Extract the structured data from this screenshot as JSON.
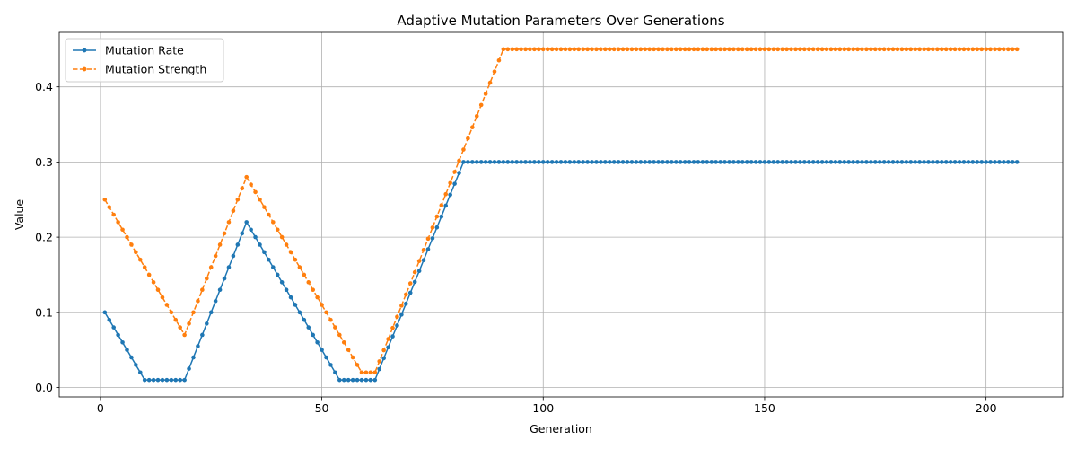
{
  "chart_data": {
    "type": "line",
    "title": "Adaptive Mutation Parameters Over Generations",
    "xlabel": "Generation",
    "ylabel": "Value",
    "xlim": [
      -9.3,
      217.3
    ],
    "ylim": [
      -0.0125,
      0.4725
    ],
    "xticks": [
      0,
      50,
      100,
      150,
      200
    ],
    "yticks": [
      0.0,
      0.1,
      0.2,
      0.3,
      0.4
    ],
    "xtick_labels": [
      "0",
      "50",
      "100",
      "150",
      "200"
    ],
    "ytick_labels": [
      "0.0",
      "0.1",
      "0.2",
      "0.3",
      "0.4"
    ],
    "grid": true,
    "legend_position": "top-left",
    "x_range": [
      1,
      207
    ],
    "series": [
      {
        "name": "Mutation Rate",
        "color": "#1f77b4",
        "style": "solid",
        "marker": "circle",
        "keypoints": [
          [
            1,
            0.1
          ],
          [
            10,
            0.01
          ],
          [
            19,
            0.01
          ],
          [
            33,
            0.22
          ],
          [
            54,
            0.01
          ],
          [
            62,
            0.01
          ],
          [
            82,
            0.3
          ],
          [
            207,
            0.3
          ]
        ]
      },
      {
        "name": "Mutation Strength",
        "color": "#ff7f0e",
        "style": "dashed",
        "marker": "circle",
        "keypoints": [
          [
            1,
            0.25
          ],
          [
            19,
            0.07
          ],
          [
            33,
            0.28
          ],
          [
            59,
            0.02
          ],
          [
            62,
            0.02
          ],
          [
            91,
            0.45
          ],
          [
            207,
            0.45
          ]
        ]
      }
    ]
  }
}
